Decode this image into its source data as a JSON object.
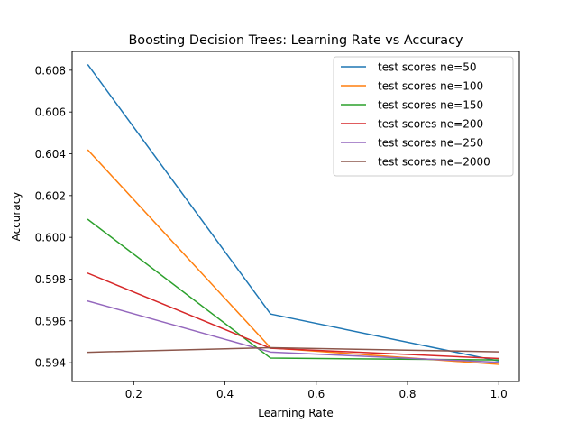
{
  "chart_data": {
    "type": "line",
    "title": "Boosting Decision Trees: Learning Rate vs Accuracy",
    "xlabel": "Learning Rate",
    "ylabel": "Accuracy",
    "xlim": [
      0.065,
      1.045
    ],
    "ylim": [
      0.5931,
      0.6089
    ],
    "xticks": [
      0.2,
      0.4,
      0.6,
      0.8,
      1.0
    ],
    "xtick_labels": [
      "0.2",
      "0.4",
      "0.6",
      "0.8",
      "1.0"
    ],
    "yticks": [
      0.594,
      0.596,
      0.598,
      0.6,
      0.602,
      0.604,
      0.606,
      0.608
    ],
    "ytick_labels": [
      "0.594",
      "0.596",
      "0.598",
      "0.600",
      "0.602",
      "0.604",
      "0.606",
      "0.608"
    ],
    "grid": false,
    "legend_position": "top-right",
    "x": [
      0.1,
      0.5,
      1.0
    ],
    "series": [
      {
        "name": "test scores ne=50",
        "color": "#1f77b4",
        "values": [
          0.60825,
          0.59633,
          0.59408
        ]
      },
      {
        "name": "test scores ne=100",
        "color": "#ff7f0e",
        "values": [
          0.60417,
          0.59471,
          0.59392
        ]
      },
      {
        "name": "test scores ne=150",
        "color": "#2ca02c",
        "values": [
          0.60085,
          0.59422,
          0.59413
        ]
      },
      {
        "name": "test scores ne=200",
        "color": "#d62728",
        "values": [
          0.59828,
          0.59469,
          0.5942
        ]
      },
      {
        "name": "test scores ne=250",
        "color": "#9467bd",
        "values": [
          0.59695,
          0.59451,
          0.59402
        ]
      },
      {
        "name": "test scores ne=2000",
        "color": "#8c564b",
        "values": [
          0.5945,
          0.59472,
          0.59452
        ]
      }
    ]
  }
}
